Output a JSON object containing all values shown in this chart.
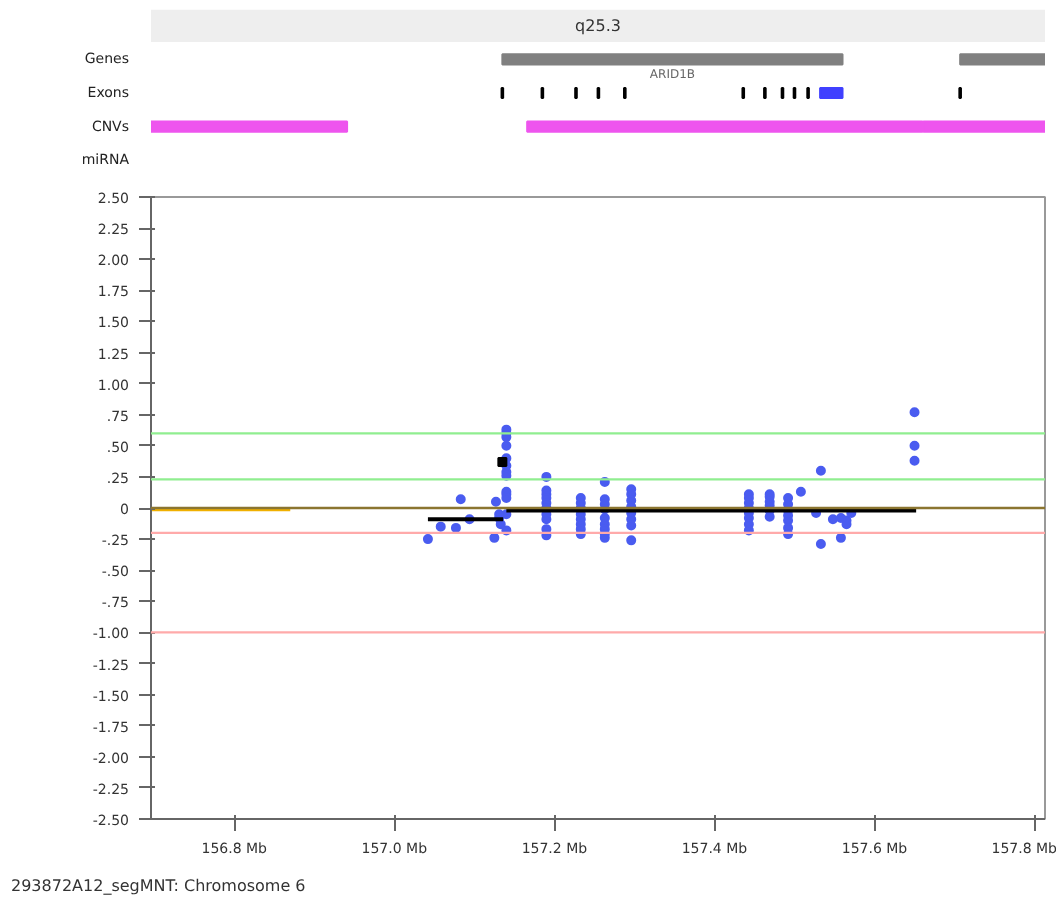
{
  "chart_data": [
    {
      "type": "bar",
      "orientation": "horizontal",
      "categories": [
        null,
        "Genes",
        "Exons",
        "CNVs",
        "miRNA"
      ],
      "xlim": [
        156.696,
        157.813
      ],
      "tick_labels": "y",
      "series": [
        {
          "colors": [
            "#eeeeee",
            "#808080",
            "#000000",
            "#ee55ee",
            null
          ],
          "base": [
            156.696,
            157.135,
            157.134,
            156.696,
            null
          ],
          "values": [
            1.117,
            0.425,
            0.002,
            0.245,
            null
          ],
          "value_labels": [
            "q25.3",
            null,
            null,
            null,
            null
          ]
        },
        {
          "colors": [
            null,
            "#808080",
            "#000000",
            "#ee55ee",
            null
          ],
          "base": [
            null,
            157.707,
            157.184,
            157.166,
            null
          ],
          "values": [
            null,
            0.106,
            0.002,
            0.494,
            null
          ]
        },
        {
          "colors": [
            null,
            null,
            "#000000",
            "#ee55ee",
            null
          ],
          "base": [
            null,
            null,
            157.226,
            157.661,
            null
          ],
          "values": [
            null,
            null,
            0.002,
            0.152,
            null
          ]
        },
        {
          "colors": [
            null,
            null,
            "#000000",
            null,
            null
          ],
          "base": [
            null,
            null,
            157.254,
            null,
            null
          ],
          "values": [
            null,
            null,
            0.002,
            null,
            null
          ]
        },
        {
          "colors": [
            null,
            null,
            "#000000",
            null,
            null
          ],
          "base": [
            null,
            null,
            157.287,
            null,
            null
          ],
          "values": [
            null,
            null,
            0.002,
            null,
            null
          ]
        },
        {
          "colors": [
            null,
            null,
            "#000000",
            null,
            null
          ],
          "base": [
            null,
            null,
            157.435,
            null,
            null
          ],
          "values": [
            null,
            null,
            0.002,
            null,
            null
          ]
        },
        {
          "colors": [
            null,
            null,
            "#000000",
            null,
            null
          ],
          "base": [
            null,
            null,
            157.462,
            null,
            null
          ],
          "values": [
            null,
            null,
            0.002,
            null,
            null
          ]
        },
        {
          "colors": [
            null,
            null,
            "#000000",
            null,
            null
          ],
          "base": [
            null,
            null,
            157.484,
            null,
            null
          ],
          "values": [
            null,
            null,
            0.002,
            null,
            null
          ]
        },
        {
          "colors": [
            null,
            null,
            "#000000",
            null,
            null
          ],
          "base": [
            null,
            null,
            157.499,
            null,
            null
          ],
          "values": [
            null,
            null,
            0.002,
            null,
            null
          ]
        },
        {
          "colors": [
            null,
            null,
            "#000000",
            null,
            null
          ],
          "base": [
            null,
            null,
            157.516,
            null,
            null
          ],
          "values": [
            null,
            null,
            0.002,
            null,
            null
          ]
        },
        {
          "colors": [
            null,
            null,
            "#4040ff",
            null,
            null
          ],
          "base": [
            null,
            null,
            157.532,
            null,
            null
          ],
          "values": [
            null,
            null,
            0.028,
            null,
            null
          ]
        },
        {
          "colors": [
            null,
            null,
            "#000000",
            null,
            null
          ],
          "base": [
            null,
            null,
            157.706,
            null,
            null
          ],
          "values": [
            null,
            null,
            0.002,
            null,
            null
          ]
        }
      ],
      "annotations": [
        "ARID1B"
      ]
    },
    {
      "type": "scatter",
      "xlim": [
        156.696,
        157.813
      ],
      "ylim": [
        -2.5,
        2.5
      ],
      "xticks": [
        {
          "value": 156.8,
          "label": "156.8 Mb"
        },
        {
          "value": 157.0,
          "label": "157.0 Mb"
        },
        {
          "value": 157.2,
          "label": "157.2 Mb"
        },
        {
          "value": 157.4,
          "label": "157.4 Mb"
        },
        {
          "value": 157.6,
          "label": "157.6 Mb"
        },
        {
          "value": 157.8,
          "label": "157.8 Mb"
        }
      ],
      "yticks": [
        {
          "value": 2.5,
          "label": "2.50"
        },
        {
          "value": 2.25,
          "label": "2.25"
        },
        {
          "value": 2.0,
          "label": "2.00"
        },
        {
          "value": 1.75,
          "label": "1.75"
        },
        {
          "value": 1.5,
          "label": "1.50"
        },
        {
          "value": 1.25,
          "label": "1.25"
        },
        {
          "value": 1.0,
          "label": "1.00"
        },
        {
          "value": 0.75,
          "label": ".75"
        },
        {
          "value": 0.5,
          "label": ".50"
        },
        {
          "value": 0.25,
          "label": ".25"
        },
        0,
        {
          "value": -0.25,
          "label": "-.25"
        },
        {
          "value": -0.5,
          "label": "-.50"
        },
        {
          "value": -0.75,
          "label": "-.75"
        },
        {
          "value": -1.0,
          "label": "-1.00"
        },
        {
          "value": -1.25,
          "label": "-1.25"
        },
        {
          "value": -1.5,
          "label": "-1.50"
        },
        {
          "value": -1.75,
          "label": "-1.75"
        },
        {
          "value": -2.0,
          "label": "-2.00"
        },
        {
          "value": -2.25,
          "label": "-2.25"
        },
        {
          "value": -2.5,
          "label": "-2.50"
        }
      ],
      "grid": false,
      "marker": "circle",
      "ref_lines": [
        {
          "axis": "y",
          "value": 0.6,
          "color": "#90ee90"
        },
        {
          "axis": "y",
          "value": 0.23,
          "color": "#90ee90"
        },
        {
          "axis": "y",
          "value": 0,
          "color": "#8b7530"
        },
        {
          "axis": "y",
          "value": -0.2,
          "color": "#ffaaaa"
        },
        {
          "axis": "y",
          "value": -1.0,
          "color": "#ffaaaa"
        }
      ],
      "series": [
        {
          "color": "#4a5cf0",
          "x": [
            157.042,
            157.058,
            157.077,
            157.083,
            157.094,
            157.125,
            157.127,
            157.131,
            157.131,
            157.133,
            157.14,
            157.14,
            157.14,
            157.14,
            157.14,
            157.14,
            157.14,
            157.14,
            157.14,
            157.14,
            157.14,
            157.14,
            157.14,
            157.19,
            157.19,
            157.19,
            157.19,
            157.19,
            157.19,
            157.19,
            157.19,
            157.19,
            157.19,
            157.233,
            157.233,
            157.233,
            157.233,
            157.233,
            157.233,
            157.233,
            157.233,
            157.263,
            157.263,
            157.263,
            157.263,
            157.263,
            157.263,
            157.263,
            157.263,
            157.263,
            157.296,
            157.296,
            157.296,
            157.296,
            157.296,
            157.296,
            157.296,
            157.296,
            157.443,
            157.443,
            157.443,
            157.443,
            157.443,
            157.443,
            157.443,
            157.443,
            157.469,
            157.469,
            157.469,
            157.469,
            157.469,
            157.469,
            157.492,
            157.492,
            157.492,
            157.492,
            157.492,
            157.492,
            157.492,
            157.508,
            157.527,
            157.533,
            157.533,
            157.548,
            157.558,
            157.558,
            157.565,
            157.565,
            157.571,
            157.65,
            157.65,
            157.65
          ],
          "values": [
            -0.25,
            -0.15,
            -0.16,
            0.07,
            -0.09,
            -0.24,
            0.05,
            -0.05,
            -0.08,
            -0.13,
            0.63,
            0.6,
            0.57,
            0.5,
            0.4,
            0.34,
            0.29,
            0.26,
            0.13,
            0.11,
            0.08,
            -0.05,
            -0.18,
            0.25,
            0.14,
            0.11,
            0.08,
            0.04,
            0,
            -0.05,
            -0.09,
            -0.17,
            -0.22,
            0.08,
            0.04,
            0,
            -0.05,
            -0.09,
            -0.13,
            -0.17,
            -0.21,
            0.21,
            0.07,
            0.03,
            -0.01,
            -0.08,
            -0.13,
            -0.17,
            -0.21,
            -0.24,
            0.15,
            0.11,
            0.06,
            0.01,
            -0.04,
            -0.09,
            -0.14,
            -0.26,
            0.11,
            0.08,
            0.04,
            0,
            -0.04,
            -0.08,
            -0.13,
            -0.18,
            0.11,
            0.09,
            0.05,
            0.02,
            -0.02,
            -0.07,
            0.08,
            0.03,
            -0.02,
            -0.06,
            -0.1,
            -0.16,
            -0.21,
            0.13,
            -0.04,
            0.3,
            -0.29,
            -0.09,
            -0.08,
            -0.24,
            -0.1,
            -0.13,
            -0.04,
            0.77,
            0.5,
            0.38
          ]
        },
        {
          "type": "line",
          "marker": "none",
          "color": "#f0b000",
          "x": [
            156.696,
            156.87
          ],
          "values": [
            -0.01,
            -0.01
          ]
        },
        {
          "type": "line",
          "marker": "none",
          "color": "#000000",
          "x": [
            157.042,
            157.136
          ],
          "values": [
            -0.09,
            -0.09
          ]
        },
        {
          "type": "line",
          "marker": "none",
          "color": "#000000",
          "x": [
            157.14,
            157.652
          ],
          "values": [
            -0.02,
            -0.02
          ]
        },
        {
          "type": "scatter",
          "marker": "square",
          "color": "#000000",
          "x": [
            157.135
          ],
          "values": [
            0.37
          ]
        }
      ],
      "annotations": [
        "293872A12_segMNT: Chromosome 6"
      ]
    }
  ]
}
